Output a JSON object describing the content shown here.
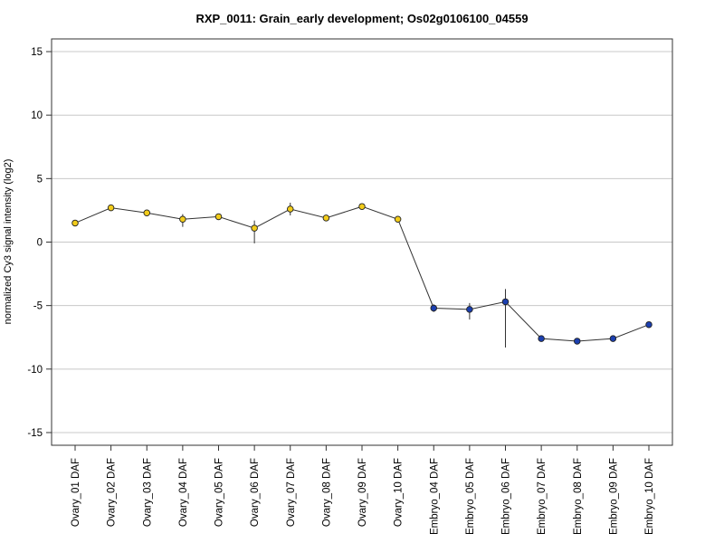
{
  "chart_data": {
    "type": "line",
    "title": "RXP_0011: Grain_early development; Os02g0106100_04559",
    "xlabel": "",
    "ylabel": "normalized Cy3 signal intensity (log2)",
    "ylim": [
      -16,
      16
    ],
    "yticks": [
      15,
      10,
      5,
      0,
      -5,
      -10,
      -15
    ],
    "grid": "horizontal",
    "categories": [
      "Ovary_01 DAF",
      "Ovary_02 DAF",
      "Ovary_03 DAF",
      "Ovary_04 DAF",
      "Ovary_05 DAF",
      "Ovary_06 DAF",
      "Ovary_07 DAF",
      "Ovary_08 DAF",
      "Ovary_09 DAF",
      "Ovary_10 DAF",
      "Embryo_04 DAF",
      "Embryo_05 DAF",
      "Embryo_06 DAF",
      "Embryo_07 DAF",
      "Embryo_08 DAF",
      "Embryo_09 DAF",
      "Embryo_10 DAF"
    ],
    "series": [
      {
        "values": [
          1.5,
          2.7,
          2.3,
          1.8,
          2.0,
          1.1,
          2.6,
          1.9,
          2.8,
          1.8,
          -5.2,
          -5.3,
          -4.7,
          -7.6,
          -7.8,
          -7.6,
          -6.5
        ],
        "error_low": [
          0,
          0,
          0,
          0.6,
          0,
          1.2,
          0.5,
          0,
          0,
          0,
          0.3,
          0.8,
          3.6,
          0,
          0,
          0,
          0
        ],
        "error_high": [
          0,
          0,
          0,
          0.4,
          0,
          0.6,
          0.5,
          0,
          0,
          0,
          0.3,
          0.5,
          1.0,
          0,
          0,
          0,
          0
        ],
        "point_colors": [
          "#f2cc1a",
          "#f2cc1a",
          "#f2cc1a",
          "#f2cc1a",
          "#f2cc1a",
          "#f2cc1a",
          "#f2cc1a",
          "#f2cc1a",
          "#f2cc1a",
          "#f2cc1a",
          "#1b3fb0",
          "#1b3fb0",
          "#1b3fb0",
          "#1b3fb0",
          "#1b3fb0",
          "#1b3fb0",
          "#1b3fb0"
        ]
      }
    ]
  }
}
